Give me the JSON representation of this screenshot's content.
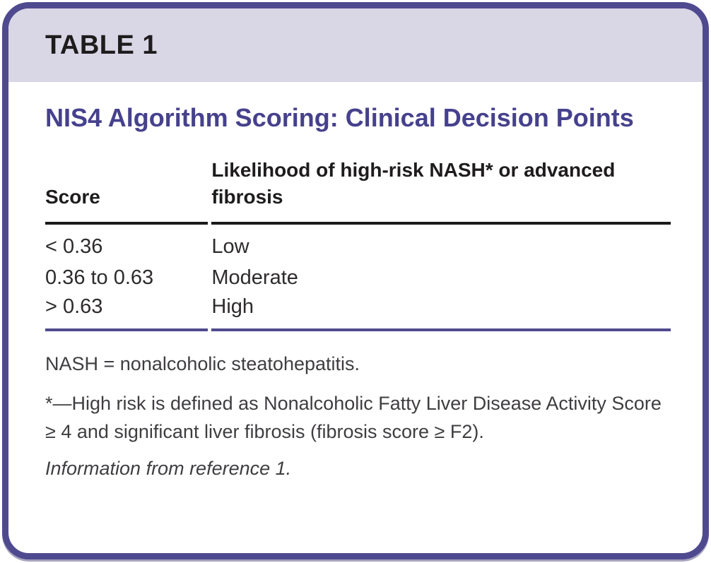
{
  "header": {
    "table_label": "TABLE 1",
    "title": "NIS4 Algorithm Scoring: Clinical Decision Points"
  },
  "table": {
    "columns": [
      "Score",
      "Likelihood of high-risk NASH* or advanced fibrosis"
    ],
    "rows": [
      {
        "score": "< 0.36",
        "likelihood": "Low"
      },
      {
        "score": "0.36 to 0.63",
        "likelihood": "Moderate"
      },
      {
        "score": "> 0.63",
        "likelihood": "High"
      }
    ]
  },
  "footnotes": {
    "abbreviation": "NASH = nonalcoholic steatohepatitis.",
    "asterisk": "*—High risk is defined as Nonalcoholic Fatty Liver Disease Activity Score ≥ 4 and significant liver fibrosis (fibrosis score ≥ F2).",
    "source": "Information from reference 1."
  },
  "colors": {
    "border": "#4f4a8f",
    "header_band": "#d9d6e5",
    "title_text": "#46418d",
    "header_rule": "#1a1a1a",
    "bottom_rule": "#4f4a8f",
    "body_text": "#2e2b2c",
    "note_text": "#3f3d40"
  }
}
